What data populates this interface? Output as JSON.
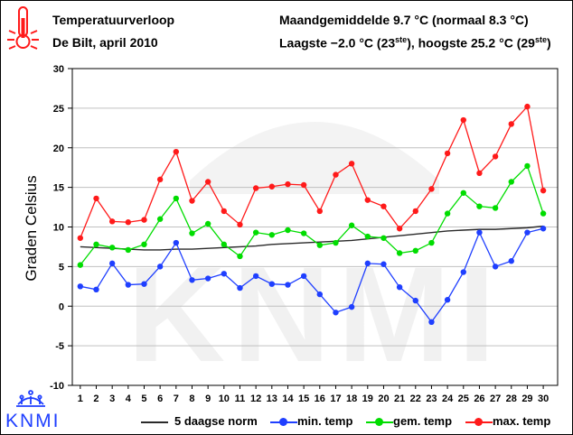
{
  "header": {
    "title": "Temperatuurverloop",
    "location_period": "De Bilt, april 2010",
    "month_mean": "Maandgemiddelde 9.7 °C (normaal 8.3 °C)",
    "extremes_pre": "Laagste −2.0 °C (23",
    "extremes_sup1": "ste",
    "extremes_mid": "), hoogste 25.2 °C (29",
    "extremes_sup2": "ste",
    "extremes_post": ")"
  },
  "logo": {
    "text": "KNMI",
    "watermark_text": "KNMI"
  },
  "icons": {
    "thermometer": "thermometer-icon",
    "crown": "crown-icon"
  },
  "colors": {
    "min": "#1f3fff",
    "mean": "#00dd00",
    "max": "#ff1a1a",
    "norm": "#2a2a2a",
    "grid": "#c0c0c0",
    "logo": "#1f3fff",
    "thermometer": "#ff1a1a"
  },
  "chart_data": {
    "type": "line",
    "title": "",
    "xlabel": "",
    "ylabel": "Graden Celsius",
    "x": [
      1,
      2,
      3,
      4,
      5,
      6,
      7,
      8,
      9,
      10,
      11,
      12,
      13,
      14,
      15,
      16,
      17,
      18,
      19,
      20,
      21,
      22,
      23,
      24,
      25,
      26,
      27,
      28,
      29,
      30
    ],
    "ylim": [
      -10,
      30
    ],
    "yticks": [
      -10,
      -5,
      0,
      5,
      10,
      15,
      20,
      25,
      30
    ],
    "grid": true,
    "legend_position": "bottom",
    "series": [
      {
        "name": "5 daagse norm",
        "style": "line",
        "values": [
          7.5,
          7.4,
          7.3,
          7.2,
          7.1,
          7.1,
          7.2,
          7.2,
          7.3,
          7.4,
          7.5,
          7.6,
          7.8,
          7.9,
          8.0,
          8.1,
          8.2,
          8.3,
          8.5,
          8.7,
          8.9,
          9.1,
          9.3,
          9.5,
          9.6,
          9.7,
          9.7,
          9.8,
          9.9,
          10.1
        ]
      },
      {
        "name": "min. temp",
        "style": "line+marker",
        "values": [
          2.5,
          2.1,
          5.4,
          2.7,
          2.8,
          5.0,
          8.0,
          3.3,
          3.5,
          4.1,
          2.3,
          3.8,
          2.8,
          2.7,
          3.8,
          1.5,
          -0.8,
          -0.1,
          5.4,
          5.3,
          2.4,
          0.7,
          -2.0,
          0.8,
          4.3,
          9.3,
          5.0,
          5.7,
          9.3,
          9.8
        ]
      },
      {
        "name": "gem. temp",
        "style": "line+marker",
        "values": [
          5.2,
          7.8,
          7.4,
          7.1,
          7.8,
          11.0,
          13.6,
          9.2,
          10.4,
          7.8,
          6.3,
          9.3,
          9.0,
          9.6,
          9.2,
          7.7,
          8.0,
          10.2,
          8.8,
          8.6,
          6.7,
          7.0,
          8.0,
          11.7,
          14.3,
          12.6,
          12.4,
          15.7,
          17.7,
          11.7
        ]
      },
      {
        "name": "max. temp",
        "style": "line+marker",
        "values": [
          8.6,
          13.6,
          10.7,
          10.6,
          10.9,
          16.0,
          19.5,
          13.3,
          15.7,
          12.0,
          10.3,
          14.9,
          15.1,
          15.4,
          15.3,
          12.0,
          16.6,
          18.0,
          13.4,
          12.6,
          9.8,
          12.0,
          14.8,
          19.3,
          23.5,
          16.8,
          18.9,
          23.0,
          25.2,
          14.6
        ]
      }
    ]
  }
}
